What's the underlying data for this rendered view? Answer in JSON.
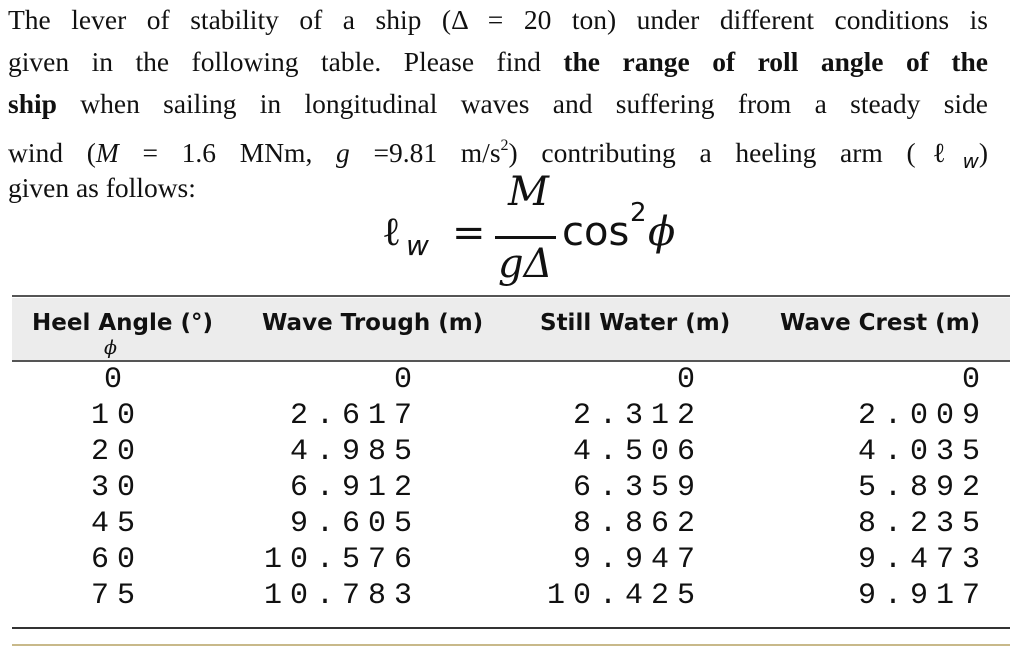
{
  "paragraph": {
    "lines": [
      [
        "The lever of stability of a ship (Δ = 20 ton) under different conditions is"
      ],
      [
        "given in the following table. Please find ",
        "the range of roll angle of the"
      ],
      [
        "ship",
        " when sailing in longitudinal waves and suffering from a steady side"
      ],
      [
        "wind (",
        "M",
        " = 1.6 MNm, ",
        "g",
        " =9.81 m/s",
        "2",
        ") contributing a heeling arm (",
        "ℓ",
        "w",
        ")"
      ],
      [
        "given as follows:"
      ]
    ]
  },
  "formula": {
    "lhs": "ℓ",
    "lhs_sub": "w",
    "equals": "=",
    "numerator": "M",
    "denominator": "gΔ",
    "func": "cos",
    "power": "2",
    "arg": "ϕ"
  },
  "table": {
    "header": [
      "Heel Angle (°)",
      "Wave Trough (m)",
      "Still Water (m)",
      "Wave Crest (m)"
    ],
    "header_sub": "ϕ",
    "rows": [
      [
        0,
        0,
        0,
        0
      ],
      [
        10,
        2.617,
        2.312,
        2.009
      ],
      [
        20,
        4.985,
        4.506,
        4.035
      ],
      [
        30,
        6.912,
        6.359,
        5.892
      ],
      [
        45,
        9.605,
        8.862,
        8.235
      ],
      [
        60,
        10.576,
        9.947,
        9.473
      ],
      [
        75,
        10.783,
        10.425,
        9.917
      ]
    ]
  }
}
